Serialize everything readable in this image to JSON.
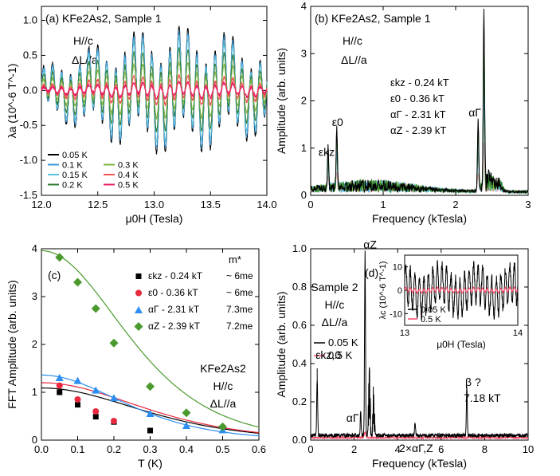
{
  "chart_data": [
    {
      "type": "line",
      "panel": "(a)",
      "title": "KFe2As2, Sample 1",
      "notes": [
        "H//c",
        "ΔL//a"
      ],
      "xlabel": "μ0H (Tesla)",
      "ylabel": "λa (10^-6 T^-1)",
      "xlim": [
        12.0,
        14.0
      ],
      "ylim": [
        -1.5,
        1.2
      ],
      "xticks": [
        "12.0",
        "12.5",
        "13.0",
        "13.5",
        "14.0"
      ],
      "yticks": [
        "-1.5",
        "-1.0",
        "-0.5",
        "0.0",
        "0.5",
        "1.0"
      ],
      "legend_position": "bottom-left",
      "series": [
        {
          "name": "0.05 K",
          "color": "#000000",
          "amplitude": 0.95
        },
        {
          "name": "0.1 K",
          "color": "#3a9ad9",
          "amplitude": 0.88
        },
        {
          "name": "0.15 K",
          "color": "#5bc0de",
          "amplitude": 0.78
        },
        {
          "name": "0.2 K",
          "color": "#2e7d32",
          "amplitude": 0.62
        },
        {
          "name": "0.3 K",
          "color": "#7cb342",
          "amplitude": 0.42
        },
        {
          "name": "0.4 K",
          "color": "#ef5350",
          "amplitude": 0.22
        },
        {
          "name": "0.5 K",
          "color": "#e91e63",
          "amplitude": 0.12
        }
      ]
    },
    {
      "type": "line",
      "panel": "(b)",
      "title": "KFe2As2, Sample 1",
      "notes": [
        "H//c",
        "ΔL//a"
      ],
      "xlabel": "Frequency (kTesla)",
      "ylabel": "Amplitude (arb. units)",
      "xlim": [
        0,
        3
      ],
      "ylim": [
        0,
        4
      ],
      "xticks": [
        "0",
        "1",
        "2",
        "3"
      ],
      "yticks": [
        "0",
        "1",
        "2",
        "3",
        "4"
      ],
      "peaks": [
        {
          "label": "εkz",
          "x": 0.24,
          "height": 0.9
        },
        {
          "label": "ε0",
          "x": 0.36,
          "height": 1.3
        },
        {
          "label": "αΓ",
          "x": 2.31,
          "height": 1.5
        },
        {
          "label": "αZ",
          "x": 2.39,
          "height": 3.8
        }
      ],
      "annotation_lines": [
        "εkz - 0.24 kT",
        "ε0 - 0.36 kT",
        "αΓ - 2.31 kT",
        "αZ - 2.39 kT"
      ]
    },
    {
      "type": "scatter",
      "panel": "(c)",
      "xlabel": "T (K)",
      "ylabel": "FFT Amplitude (arb. units)",
      "xlim": [
        0.0,
        0.6
      ],
      "ylim": [
        0,
        4
      ],
      "xticks": [
        "0.0",
        "0.1",
        "0.2",
        "0.3",
        "0.4",
        "0.5",
        "0.6"
      ],
      "yticks": [
        "0",
        "1",
        "2",
        "3",
        "4"
      ],
      "notes": [
        "KFe2As2",
        "H//c",
        "ΔL//a"
      ],
      "legend_header": "m*",
      "series": [
        {
          "name": "εkz - 0.24 kT",
          "mass": "~ 6me",
          "color": "#000000",
          "marker": "square",
          "x": [
            0.05,
            0.1,
            0.15,
            0.2,
            0.3
          ],
          "y": [
            1.0,
            0.74,
            0.49,
            0.38,
            0.2
          ],
          "fit": {
            "A0": 1.09,
            "m": 6.0
          }
        },
        {
          "name": "ε0 - 0.36 kT",
          "mass": "~ 6me",
          "color": "#e8293e",
          "marker": "circle",
          "x": [
            0.05,
            0.1,
            0.15,
            0.2
          ],
          "y": [
            1.14,
            0.85,
            0.6,
            0.4
          ],
          "fit": {
            "A0": 1.2,
            "m": 6.0
          }
        },
        {
          "name": "αΓ - 2.31 kT",
          "mass": "7.3me",
          "color": "#2b8ef0",
          "marker": "triangle",
          "x": [
            0.05,
            0.1,
            0.15,
            0.2,
            0.3,
            0.4,
            0.5
          ],
          "y": [
            1.3,
            1.24,
            1.04,
            0.88,
            0.55,
            0.3,
            0.21
          ],
          "fit": {
            "A0": 1.36,
            "m": 7.3
          }
        },
        {
          "name": "αZ - 2.39 kT",
          "mass": "7.2me",
          "color": "#4a9a2e",
          "marker": "diamond",
          "x": [
            0.05,
            0.1,
            0.15,
            0.2,
            0.3,
            0.4,
            0.5
          ],
          "y": [
            3.82,
            3.3,
            2.75,
            2.03,
            1.12,
            0.57,
            0.28
          ],
          "fit": {
            "A0": 3.96,
            "m": 7.2
          }
        }
      ]
    },
    {
      "type": "line",
      "panel": "(d)",
      "xlabel": "Frequency (kTesla)",
      "ylabel": "Amplitude (arb. units)",
      "xlim": [
        0,
        10
      ],
      "ylim": [
        0,
        1.0
      ],
      "xticks": [
        "0",
        "2",
        "4",
        "6",
        "8",
        "10"
      ],
      "yticks": [
        "0.0",
        "0.2",
        "0.4",
        "0.6",
        "0.8",
        "1.0"
      ],
      "notes": [
        "Sample 2",
        "H//c",
        "ΔL//a"
      ],
      "series": [
        {
          "name": "0.05 K",
          "color": "#000000"
        },
        {
          "name": "0.5 K",
          "color": "#ff4d6d"
        }
      ],
      "peaks": [
        {
          "label": "εkz,0",
          "x": 0.3,
          "height": 0.3
        },
        {
          "label": "αΓ",
          "x": 2.3,
          "height": 0.12
        },
        {
          "label": "αZ",
          "x": 2.5,
          "height": 0.96
        },
        {
          "label": "2×αΓ,Z",
          "x": 4.8,
          "height": 0.07
        },
        {
          "label": "β ?",
          "x": 7.18,
          "height": 0.25
        }
      ],
      "beta_label": "7.18 kT",
      "inset": {
        "xlabel": "μ0H (Tesla)",
        "ylabel": "λc (10^-6 T^-1)",
        "xlim": [
          13,
          14
        ],
        "ylim": [
          -15,
          15
        ],
        "xticks": [
          "13",
          "14"
        ],
        "yticks": [
          "-10",
          "0",
          "10"
        ],
        "series": [
          {
            "name": "0.05 K",
            "color": "#000000",
            "amplitude": 11
          },
          {
            "name": "0.5 K",
            "color": "#ff4d6d",
            "amplitude": 1.2
          }
        ]
      }
    }
  ]
}
